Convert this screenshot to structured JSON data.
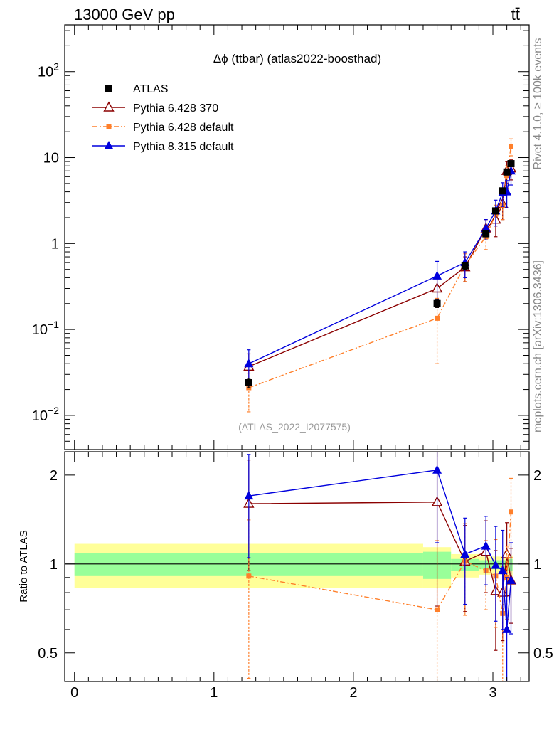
{
  "header": {
    "left": "13000 GeV pp",
    "right": "tt̄"
  },
  "side_labels": {
    "rivet": "Rivet 4.1.0, ≥ 100k events",
    "mcplots": "mcplots.cern.ch [arXiv:1306.3436]"
  },
  "colors": {
    "atlas": "#000000",
    "pythia6_370": "#8b0000",
    "pythia6_default": "#ff7f2a",
    "pythia8": "#0000dd",
    "band_inner": "#99ff99",
    "band_outer": "#ffff99"
  },
  "chart_data": [
    {
      "type": "scatter",
      "panel": "main",
      "title": "Δϕ (ttbar) (atlas2022-boosthad)",
      "watermark": "(ATLAS_2022_I2077575)",
      "xlabel": "",
      "ylabel": "",
      "yscale": "log",
      "xlim": [
        -0.07,
        3.26
      ],
      "ylim": [
        0.004,
        350
      ],
      "legend_position": "top-left",
      "y_ticks": [
        {
          "value": 0.01,
          "base": "10",
          "exp": "−2"
        },
        {
          "value": 0.1,
          "base": "10",
          "exp": "−1"
        },
        {
          "value": 1,
          "base": "1",
          "exp": ""
        },
        {
          "value": 10,
          "base": "10",
          "exp": ""
        },
        {
          "value": 100,
          "base": "10",
          "exp": "2"
        }
      ],
      "series": [
        {
          "name": "ATLAS",
          "style": "data",
          "x": [
            1.25,
            2.6,
            2.8,
            2.95,
            3.02,
            3.07,
            3.1,
            3.13
          ],
          "y": [
            0.024,
            0.2,
            0.55,
            1.3,
            2.4,
            4.1,
            6.8,
            8.5
          ],
          "err": [
            0.003,
            0.02,
            0.05,
            0.1,
            0.2,
            0.3,
            0.5,
            0.6
          ]
        },
        {
          "name": "Pythia 6.428 370",
          "style": "open-triangle",
          "x": [
            1.25,
            2.6,
            2.8,
            2.95,
            3.02,
            3.07,
            3.1,
            3.13
          ],
          "y": [
            0.037,
            0.3,
            0.53,
            1.5,
            1.9,
            2.9,
            7.0,
            7.5
          ],
          "err": [
            0.015,
            0.12,
            0.17,
            0.4,
            0.7,
            1.0,
            2.0,
            2.0
          ]
        },
        {
          "name": "Pythia 6.428 default",
          "style": "small-square",
          "x": [
            1.25,
            2.6,
            2.8,
            2.95,
            3.02,
            3.07,
            3.1,
            3.13
          ],
          "y": [
            0.021,
            0.135,
            0.56,
            1.2,
            2.2,
            2.8,
            6.2,
            13.5
          ],
          "err": [
            0.01,
            0.095,
            0.2,
            0.35,
            0.6,
            0.9,
            1.8,
            3.0
          ]
        },
        {
          "name": "Pythia 8.315 default",
          "style": "filled-triangle",
          "x": [
            1.25,
            2.6,
            2.8,
            2.95,
            3.02,
            3.07,
            3.1,
            3.13
          ],
          "y": [
            0.04,
            0.42,
            0.6,
            1.5,
            2.4,
            3.9,
            4.0,
            7.0
          ],
          "err": [
            0.018,
            0.2,
            0.2,
            0.4,
            0.8,
            1.2,
            1.4,
            2.2
          ]
        }
      ]
    },
    {
      "type": "scatter",
      "panel": "ratio",
      "xlabel": "",
      "ylabel": "Ratio to ATLAS",
      "yscale": "log",
      "xlim": [
        -0.07,
        3.26
      ],
      "ylim": [
        0.4,
        2.4
      ],
      "x_ticks": [
        "0",
        "1",
        "2",
        "3"
      ],
      "y_ticks": [
        {
          "value": 0.5,
          "label": "0.5"
        },
        {
          "value": 1,
          "label": "1"
        },
        {
          "value": 2,
          "label": "2"
        }
      ],
      "reference_line": 1,
      "band_x_edges": [
        0,
        2.5,
        2.7,
        2.9,
        3.0,
        3.05,
        3.08,
        3.11,
        3.1416
      ],
      "band_inner": [
        [
          0.91,
          1.09
        ],
        [
          0.89,
          1.1
        ],
        [
          0.95,
          1.04
        ],
        [
          0.96,
          1.03
        ],
        [
          0.96,
          1.03
        ],
        [
          0.95,
          1.03
        ],
        [
          0.95,
          1.03
        ],
        [
          0.95,
          1.04
        ]
      ],
      "band_outer": [
        [
          0.83,
          1.17
        ],
        [
          0.83,
          1.14
        ],
        [
          0.9,
          1.08
        ],
        [
          0.92,
          1.06
        ],
        [
          0.93,
          1.06
        ],
        [
          0.92,
          1.06
        ],
        [
          0.92,
          1.06
        ],
        [
          0.91,
          1.07
        ]
      ],
      "series": [
        {
          "name": "Pythia 6.428 370",
          "style": "open-triangle",
          "x": [
            1.25,
            2.6,
            2.8,
            2.95,
            3.02,
            3.07,
            3.1,
            3.13
          ],
          "y": [
            1.6,
            1.62,
            1.02,
            1.1,
            0.81,
            0.8,
            1.08,
            0.88
          ],
          "err": [
            0.65,
            0.9,
            0.33,
            0.3,
            0.3,
            0.25,
            0.3,
            0.25
          ]
        },
        {
          "name": "Pythia 6.428 default",
          "style": "small-square",
          "x": [
            1.25,
            2.6,
            2.8,
            2.95,
            3.02,
            3.07,
            3.1,
            3.13
          ],
          "y": [
            0.91,
            0.7,
            1.02,
            0.95,
            0.91,
            0.68,
            0.9,
            1.5
          ],
          "err": [
            0.5,
            0.5,
            0.35,
            0.25,
            0.3,
            0.3,
            0.25,
            0.45
          ]
        },
        {
          "name": "Pythia 8.315 default",
          "style": "filled-triangle",
          "x": [
            1.25,
            2.6,
            2.8,
            2.95,
            3.02,
            3.07,
            3.1,
            3.13
          ],
          "y": [
            1.7,
            2.08,
            1.08,
            1.15,
            0.99,
            0.95,
            0.6,
            0.88
          ],
          "err": [
            0.65,
            0.9,
            0.35,
            0.3,
            0.35,
            0.35,
            0.3,
            0.3
          ]
        }
      ]
    }
  ]
}
